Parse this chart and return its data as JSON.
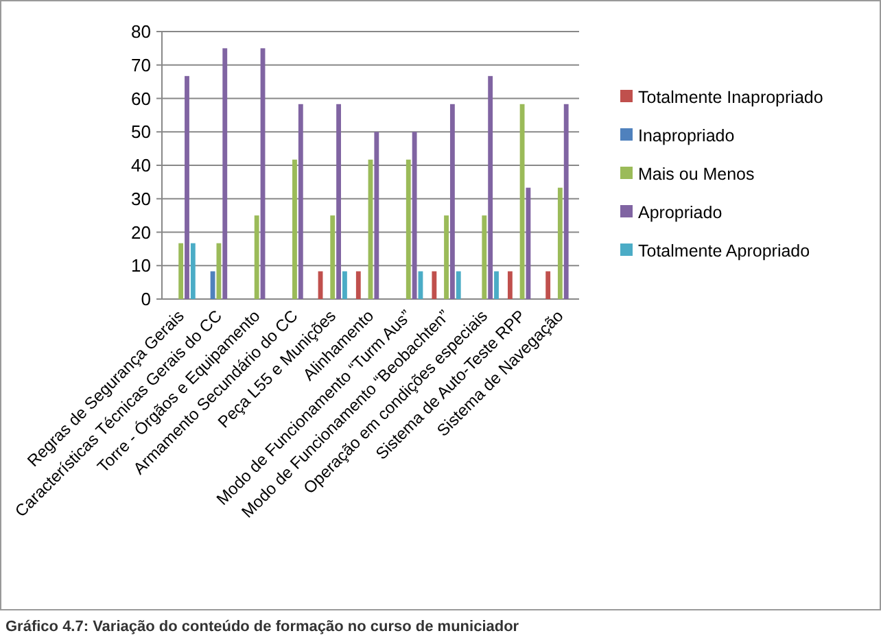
{
  "chart_data": {
    "type": "bar",
    "title": "Gráfico 4.7: Variação do conteúdo de formação no curso de municiador",
    "categories": [
      "Regras de Segurança Gerais",
      "Características Técnicas Gerais do CC",
      "Torre - Órgãos e Equipamento",
      "Armamento Secundário do CC",
      "Peça L55 e Munições",
      "Alinhamento",
      "Modo de Funcionamento “Turm Aus”",
      "Modo de Funcionamento “Beobachten”",
      "Operação em condições especiais",
      "Sistema de Auto-Teste RPP",
      "Sistema de Navegação"
    ],
    "series": [
      {
        "name": "Totalmente Inapropriado",
        "color": "#c0504d",
        "values": [
          0,
          0,
          0,
          0,
          8.3,
          8.3,
          0,
          8.3,
          0,
          8.3,
          8.3
        ]
      },
      {
        "name": "Inapropriado",
        "color": "#4f81bd",
        "values": [
          0,
          8.3,
          0,
          0,
          0,
          0,
          0,
          0,
          0,
          0,
          0
        ]
      },
      {
        "name": "Mais ou Menos",
        "color": "#9bbb59",
        "values": [
          16.7,
          16.7,
          25,
          41.7,
          25,
          41.7,
          41.7,
          25,
          25,
          58.3,
          33.3
        ]
      },
      {
        "name": "Apropriado",
        "color": "#8064a2",
        "values": [
          66.7,
          75,
          75,
          58.3,
          58.3,
          50,
          50,
          58.3,
          66.7,
          33.3,
          58.3
        ]
      },
      {
        "name": "Totalmente Apropriado",
        "color": "#4bacc6",
        "values": [
          16.7,
          0,
          0,
          0,
          8.3,
          0,
          8.3,
          8.3,
          8.3,
          0,
          0
        ]
      }
    ],
    "ylim": [
      0,
      80
    ],
    "yticks": [
      0,
      10,
      20,
      30,
      40,
      50,
      60,
      70,
      80
    ],
    "grid": "y",
    "legend": "right"
  }
}
